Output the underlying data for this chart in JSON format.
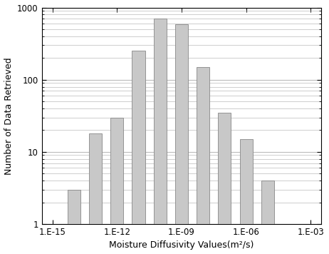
{
  "bar_positions": [
    -14,
    -13,
    -12,
    -11,
    -10,
    -9,
    -8,
    -7,
    -6,
    -5
  ],
  "bar_heights": [
    3,
    18,
    30,
    250,
    700,
    580,
    150,
    35,
    15,
    4
  ],
  "bar_color": "#c8c8c8",
  "bar_edgecolor": "#888888",
  "bar_width": 0.6,
  "xlabel": "Moisture Diffusivity Values(m²/s)",
  "ylabel": "Number of Data Retrieved",
  "xlim_min": -15.5,
  "xlim_max": -2.5,
  "ylim_min": 1,
  "ylim_max": 1000,
  "xtick_positions": [
    -15,
    -12,
    -9,
    -6,
    -3
  ],
  "xtick_labels": [
    "1.E-15",
    "1.E-12",
    "1.E-09",
    "1.E-06",
    "1.E-03"
  ],
  "ytick_positions": [
    1,
    10,
    100,
    1000
  ],
  "ytick_labels": [
    "1",
    "10",
    "100",
    "1000"
  ],
  "grid_color": "#bbbbbb",
  "background_color": "#ffffff",
  "xlabel_fontsize": 9,
  "ylabel_fontsize": 9,
  "tick_fontsize": 8.5
}
